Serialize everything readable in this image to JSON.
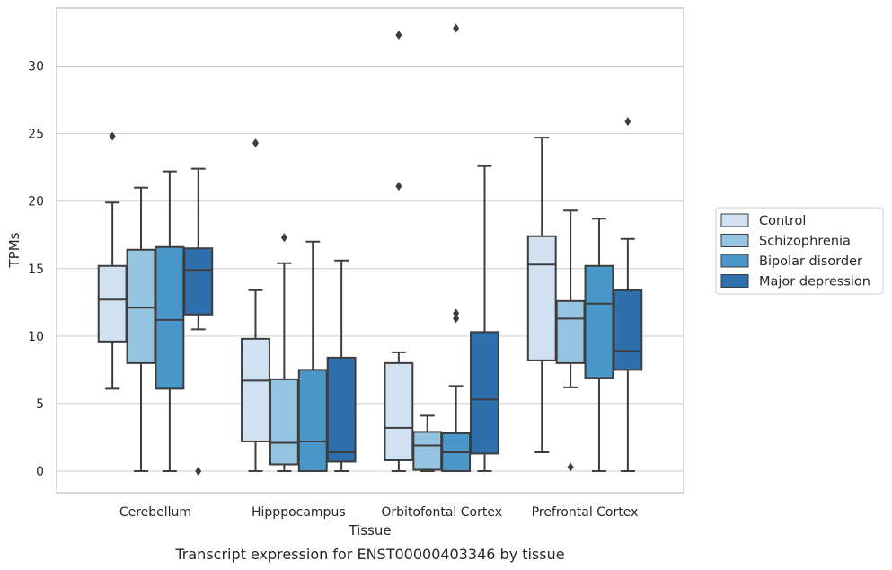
{
  "caption": "Transcript expression for ENST00000403346 by tissue",
  "chart_data": {
    "type": "box",
    "xlabel": "Tissue",
    "ylabel": "TPMs",
    "ylim": [
      -1.6,
      34.3
    ],
    "yticks": [
      0,
      5,
      10,
      15,
      20,
      25,
      30
    ],
    "grid": true,
    "legend_position": "right",
    "categories": [
      "Cerebellum",
      "Hipppocampus",
      "Orbitofontal Cortex",
      "Prefrontal Cortex"
    ],
    "series": [
      {
        "name": "Control",
        "color": "#d0e1f2",
        "boxes": [
          {
            "whislo": 6.1,
            "q1": 9.6,
            "med": 12.7,
            "q3": 15.2,
            "whishi": 19.9,
            "fliers": [
              24.8
            ]
          },
          {
            "whislo": 0.0,
            "q1": 2.2,
            "med": 6.7,
            "q3": 9.8,
            "whishi": 13.4,
            "fliers": [
              24.3
            ]
          },
          {
            "whislo": 0.0,
            "q1": 0.8,
            "med": 3.2,
            "q3": 8.0,
            "whishi": 8.8,
            "fliers": [
              21.1,
              32.3
            ]
          },
          {
            "whislo": 1.4,
            "q1": 8.2,
            "med": 15.3,
            "q3": 17.4,
            "whishi": 24.7,
            "fliers": []
          }
        ]
      },
      {
        "name": "Schizophrenia",
        "color": "#94c4df",
        "boxes": [
          {
            "whislo": 0.0,
            "q1": 8.0,
            "med": 12.1,
            "q3": 16.4,
            "whishi": 21.0,
            "fliers": []
          },
          {
            "whislo": 0.0,
            "q1": 0.5,
            "med": 2.1,
            "q3": 6.8,
            "whishi": 15.4,
            "fliers": [
              17.3
            ]
          },
          {
            "whislo": 0.0,
            "q1": 0.1,
            "med": 1.9,
            "q3": 2.9,
            "whishi": 4.1,
            "fliers": []
          },
          {
            "whislo": 6.2,
            "q1": 8.0,
            "med": 11.3,
            "q3": 12.6,
            "whishi": 19.3,
            "fliers": [
              0.3
            ]
          }
        ]
      },
      {
        "name": "Bipolar disorder",
        "color": "#4a98c9",
        "boxes": [
          {
            "whislo": 0.0,
            "q1": 6.1,
            "med": 11.2,
            "q3": 16.6,
            "whishi": 22.2,
            "fliers": []
          },
          {
            "whislo": 0.0,
            "q1": 0.0,
            "med": 2.2,
            "q3": 7.5,
            "whishi": 17.0,
            "fliers": []
          },
          {
            "whislo": 0.0,
            "q1": 0.0,
            "med": 1.4,
            "q3": 2.8,
            "whishi": 6.3,
            "fliers": [
              11.3,
              11.7,
              32.8
            ]
          },
          {
            "whislo": 0.0,
            "q1": 6.9,
            "med": 12.4,
            "q3": 15.2,
            "whishi": 18.7,
            "fliers": []
          }
        ]
      },
      {
        "name": "Major depression",
        "color": "#2e6fae",
        "boxes": [
          {
            "whislo": 10.5,
            "q1": 11.6,
            "med": 14.9,
            "q3": 16.5,
            "whishi": 22.4,
            "fliers": [
              0.0
            ]
          },
          {
            "whislo": 0.0,
            "q1": 0.7,
            "med": 1.4,
            "q3": 8.4,
            "whishi": 15.6,
            "fliers": []
          },
          {
            "whislo": 0.0,
            "q1": 1.3,
            "med": 5.3,
            "q3": 10.3,
            "whishi": 22.6,
            "fliers": []
          },
          {
            "whislo": 0.0,
            "q1": 7.5,
            "med": 8.9,
            "q3": 13.4,
            "whishi": 17.2,
            "fliers": [
              25.9
            ]
          }
        ]
      }
    ]
  }
}
